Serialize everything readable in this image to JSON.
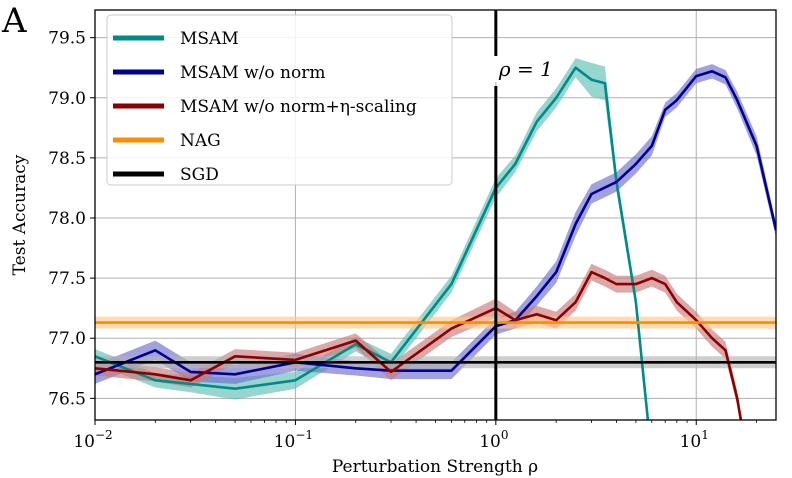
{
  "panel_label": "A",
  "chart_data": {
    "type": "line",
    "xscale": "log",
    "xlim": [
      0.01,
      25
    ],
    "ylim": [
      76.32,
      79.73
    ],
    "xlabel": "Perturbation Strength ρ",
    "ylabel": "Test Accuracy",
    "grid": true,
    "legend_position": "top-left",
    "x_ticks": [
      {
        "value": 0.01,
        "base": "10",
        "exp": "−2"
      },
      {
        "value": 0.1,
        "base": "10",
        "exp": "−1"
      },
      {
        "value": 1,
        "base": "10",
        "exp": "0"
      },
      {
        "value": 10,
        "base": "10",
        "exp": "1"
      }
    ],
    "y_ticks": [
      "76.5",
      "77.0",
      "77.5",
      "78.0",
      "78.5",
      "79.0",
      "79.5"
    ],
    "vline": {
      "x": 1,
      "color": "#000000",
      "label": "ρ = 1"
    },
    "series": [
      {
        "name": "MSAM",
        "color": "#008b8b",
        "band_color": "#5fbfb5",
        "x": [
          0.01,
          0.02,
          0.03,
          0.05,
          0.1,
          0.2,
          0.3,
          0.6,
          1.0,
          1.25,
          1.6,
          2.0,
          2.5,
          3.0,
          3.5,
          4.0,
          5.0,
          6.0
        ],
        "y": [
          76.85,
          76.65,
          76.62,
          76.58,
          76.65,
          76.95,
          76.8,
          77.45,
          78.25,
          78.45,
          78.8,
          79.0,
          79.25,
          79.15,
          79.12,
          78.3,
          77.3,
          76.0
        ],
        "band": [
          0.06,
          0.06,
          0.07,
          0.09,
          0.07,
          0.06,
          0.07,
          0.07,
          0.08,
          0.07,
          0.08,
          0.08,
          0.08,
          0.14,
          0.14,
          0.08,
          0.06,
          0.06
        ]
      },
      {
        "name": "MSAM w/o norm",
        "color": "#00008b",
        "band_color": "#6f6fd0",
        "x": [
          0.01,
          0.02,
          0.03,
          0.05,
          0.1,
          0.2,
          0.3,
          0.6,
          1.0,
          1.25,
          1.6,
          2.0,
          2.5,
          3.0,
          4.0,
          5.0,
          6.0,
          7.0,
          8.0,
          10.0,
          12.0,
          14.0,
          16.0,
          20.0,
          25.0
        ],
        "y": [
          76.7,
          76.9,
          76.72,
          76.7,
          76.8,
          76.75,
          76.73,
          76.73,
          77.1,
          77.15,
          77.35,
          77.55,
          77.95,
          78.2,
          78.3,
          78.45,
          78.6,
          78.9,
          78.98,
          79.18,
          79.22,
          79.17,
          78.98,
          78.6,
          77.9
        ],
        "band": [
          0.08,
          0.08,
          0.08,
          0.08,
          0.07,
          0.06,
          0.07,
          0.07,
          0.07,
          0.07,
          0.08,
          0.09,
          0.1,
          0.08,
          0.08,
          0.08,
          0.08,
          0.06,
          0.06,
          0.06,
          0.06,
          0.06,
          0.07,
          0.08,
          0.06
        ]
      },
      {
        "name": "MSAM w/o norm+η-scaling",
        "color": "#8b0000",
        "band_color": "#c97a7a",
        "x": [
          0.01,
          0.02,
          0.03,
          0.05,
          0.1,
          0.2,
          0.3,
          0.6,
          1.0,
          1.25,
          1.6,
          2.0,
          2.5,
          3.0,
          3.5,
          4.0,
          5.0,
          6.0,
          7.0,
          8.0,
          10.0,
          12.0,
          14.0,
          16.0,
          18.0
        ],
        "y": [
          76.75,
          76.7,
          76.65,
          76.85,
          76.82,
          76.98,
          76.72,
          77.08,
          77.25,
          77.15,
          77.2,
          77.15,
          77.3,
          77.55,
          77.5,
          77.45,
          77.45,
          77.5,
          77.45,
          77.3,
          77.15,
          77.0,
          76.9,
          76.5,
          76.0
        ],
        "band": [
          0.06,
          0.06,
          0.06,
          0.06,
          0.06,
          0.06,
          0.07,
          0.07,
          0.08,
          0.07,
          0.07,
          0.07,
          0.07,
          0.07,
          0.07,
          0.07,
          0.07,
          0.07,
          0.07,
          0.07,
          0.07,
          0.07,
          0.07,
          0.06,
          0.06
        ]
      },
      {
        "name": "NAG",
        "color": "#ff8c00",
        "band_color": "#ffc78a",
        "x": [
          0.01,
          25.0
        ],
        "y": [
          77.13,
          77.13
        ],
        "band": [
          0.05,
          0.05
        ]
      },
      {
        "name": "SGD",
        "color": "#000000",
        "band_color": "#b3b3b3",
        "x": [
          0.01,
          25.0
        ],
        "y": [
          76.8,
          76.8
        ],
        "band": [
          0.05,
          0.05
        ]
      }
    ]
  }
}
